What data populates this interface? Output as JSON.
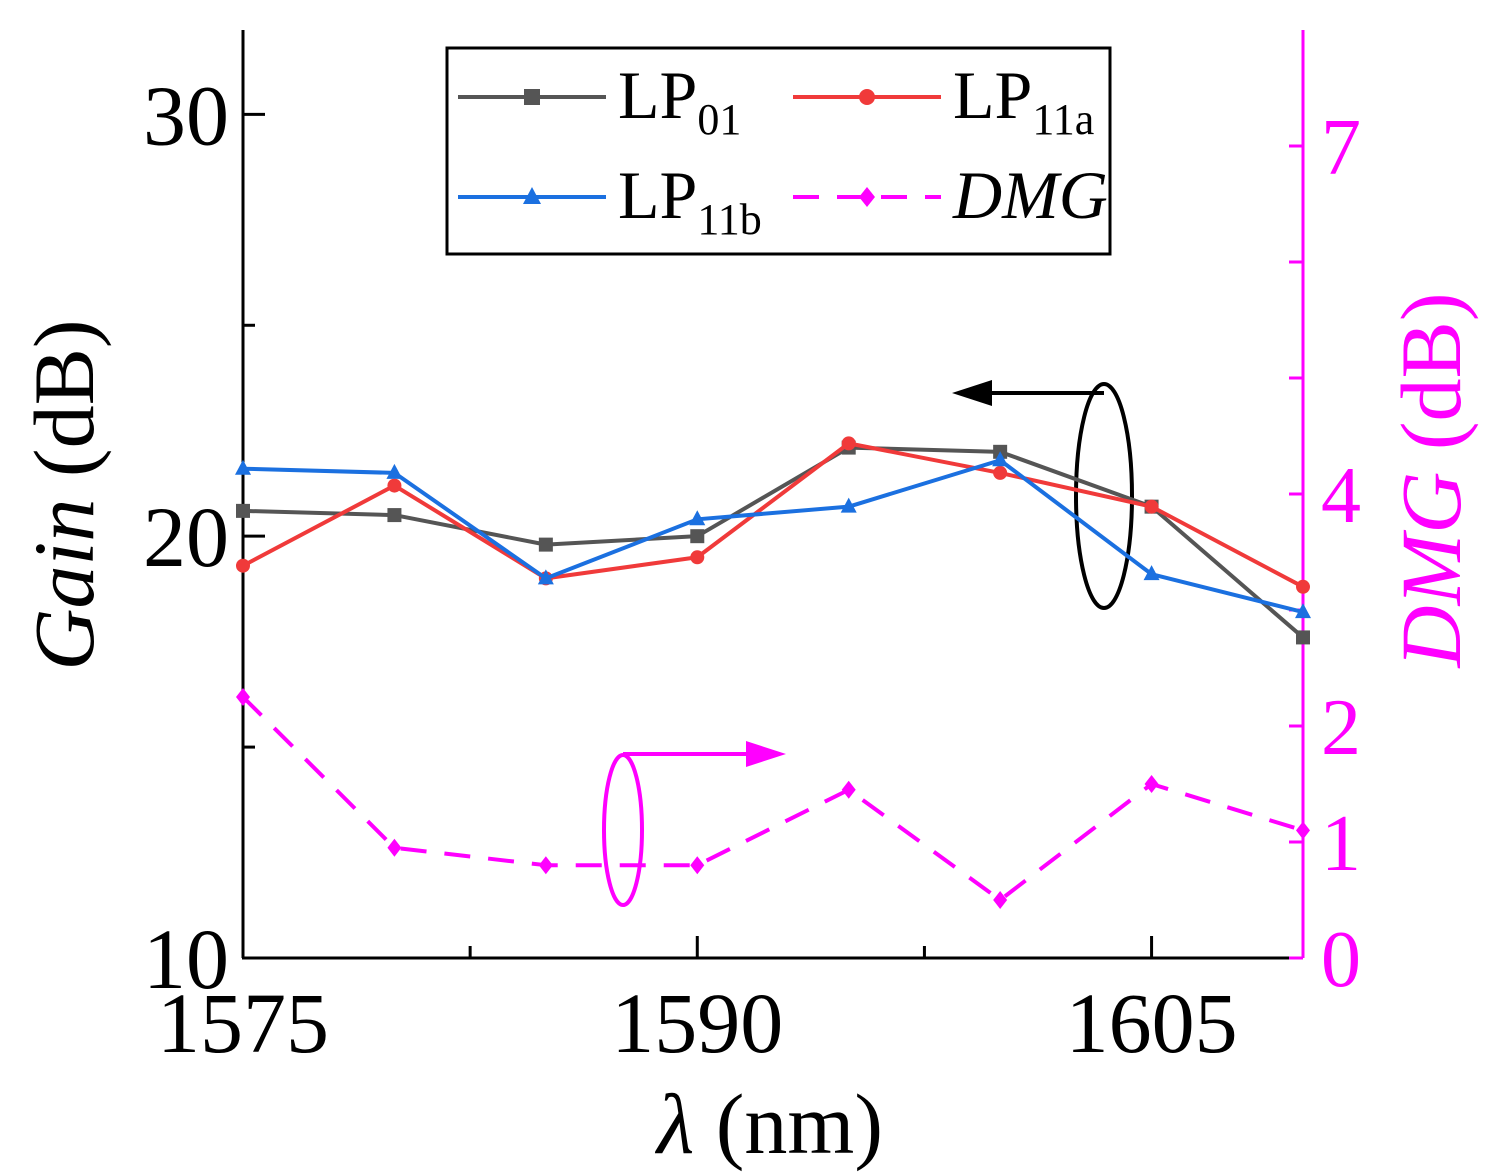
{
  "chart_data": {
    "type": "line",
    "x": [
      1575,
      1580,
      1585,
      1590,
      1595,
      1600,
      1605,
      1610
    ],
    "xlim": [
      1575,
      1610
    ],
    "xticks": [
      1575,
      1590,
      1605
    ],
    "xlabel": {
      "symbol": "λ",
      "unit": " (nm)"
    },
    "ylim_left": [
      10,
      32
    ],
    "yticks_left": [
      10,
      20,
      30
    ],
    "ylabel_left": {
      "italic": "Gain",
      "unit": " (dB)"
    },
    "ylim_right": [
      0,
      8
    ],
    "yticks_right": [
      0,
      1,
      2,
      4,
      7
    ],
    "ylabel_right": {
      "italic": "DMG",
      "unit": " (dB)"
    },
    "series": [
      {
        "name": "LP01",
        "base": "LP",
        "sub": "01",
        "axis": "left",
        "color": "#555555",
        "marker": "square",
        "dash": "solid",
        "values": [
          20.6,
          20.5,
          19.8,
          20.0,
          22.1,
          22.0,
          20.7,
          17.6
        ]
      },
      {
        "name": "LP11a",
        "base": "LP",
        "sub": "11a",
        "axis": "left",
        "color": "#f03a3a",
        "marker": "circle",
        "dash": "solid",
        "values": [
          19.3,
          21.2,
          19.0,
          19.5,
          22.2,
          21.5,
          20.7,
          18.8
        ]
      },
      {
        "name": "LP11b",
        "base": "LP",
        "sub": "11b",
        "axis": "left",
        "color": "#1b70e0",
        "marker": "triangle",
        "dash": "solid",
        "values": [
          21.6,
          21.5,
          19.0,
          20.4,
          20.7,
          21.8,
          19.1,
          18.2
        ]
      },
      {
        "name": "DMG",
        "base": "DMG",
        "sub": "",
        "italic": true,
        "axis": "right",
        "color": "#ff00ff",
        "marker": "diamond",
        "dash": "dashed",
        "values": [
          2.25,
          0.95,
          0.8,
          0.8,
          1.45,
          0.5,
          1.5,
          1.1
        ]
      }
    ]
  }
}
